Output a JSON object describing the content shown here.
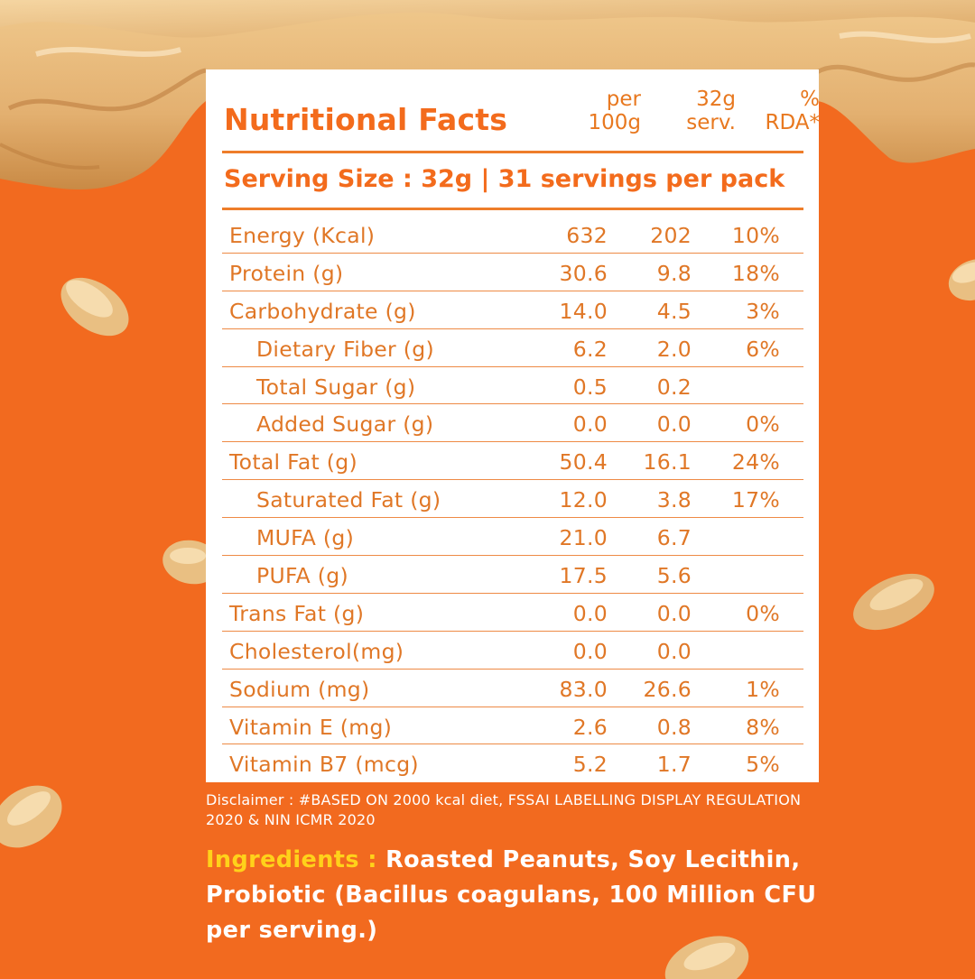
{
  "panel": {
    "title": "Nutritional Facts",
    "col_headers": [
      "per\n100g",
      "32g\nserv.",
      "%\nRDA*"
    ],
    "col1_a": "per",
    "col1_b": "100g",
    "col2_a": "32g",
    "col2_b": "serv.",
    "col3_a": "%",
    "col3_b": "RDA*",
    "serving_size": "Serving Size : 32g  |  31 servings per pack",
    "rows": [
      {
        "name": "Energy (Kcal)",
        "per100": "632",
        "serv": "202",
        "rda": "10%"
      },
      {
        "name": "Protein (g)",
        "per100": "30.6",
        "serv": "9.8",
        "rda": "18%"
      },
      {
        "name": "Carbohydrate (g)",
        "per100": "14.0",
        "serv": "4.5",
        "rda": "3%"
      },
      {
        "name": "Dietary Fiber (g)",
        "per100": "6.2",
        "serv": "2.0",
        "rda": "6%"
      },
      {
        "name": "Total Sugar (g)",
        "per100": "0.5",
        "serv": "0.2",
        "rda": ""
      },
      {
        "name": "Added Sugar (g)",
        "per100": "0.0",
        "serv": "0.0",
        "rda": "0%"
      },
      {
        "name": "Total Fat (g)",
        "per100": "50.4",
        "serv": "16.1",
        "rda": "24%"
      },
      {
        "name": "Saturated Fat (g)",
        "per100": "12.0",
        "serv": "3.8",
        "rda": "17%"
      },
      {
        "name": "MUFA (g)",
        "per100": "21.0",
        "serv": "6.7",
        "rda": ""
      },
      {
        "name": "PUFA (g)",
        "per100": "17.5",
        "serv": "5.6",
        "rda": ""
      },
      {
        "name": "Trans Fat (g)",
        "per100": "0.0",
        "serv": "0.0",
        "rda": "0%"
      },
      {
        "name": "Cholesterol(mg)",
        "per100": "0.0",
        "serv": "0.0",
        "rda": ""
      },
      {
        "name": "Sodium (mg)",
        "per100": "83.0",
        "serv": "26.6",
        "rda": "1%"
      },
      {
        "name": "Vitamin E (mg)",
        "per100": "2.6",
        "serv": "0.8",
        "rda": "8%"
      },
      {
        "name": "Vitamin B7 (mcg)",
        "per100": "5.2",
        "serv": "1.7",
        "rda": "5%"
      }
    ]
  },
  "disclaimer": "Disclaimer : #BASED ON 2000 kcal diet, FSSAI LABELLING DISPLAY REGULATION 2020 & NIN ICMR 2020",
  "ingredients": {
    "label": "Ingredients :",
    "text": "Roasted Peanuts, Soy Lecithin, Probiotic (Bacillus coagulans, 100 Million CFU per serving.)"
  },
  "colors": {
    "background": "#f26a1f",
    "accent": "#f36b1c",
    "ingredients_label": "#ffd21a",
    "panel": "#ffffff"
  }
}
